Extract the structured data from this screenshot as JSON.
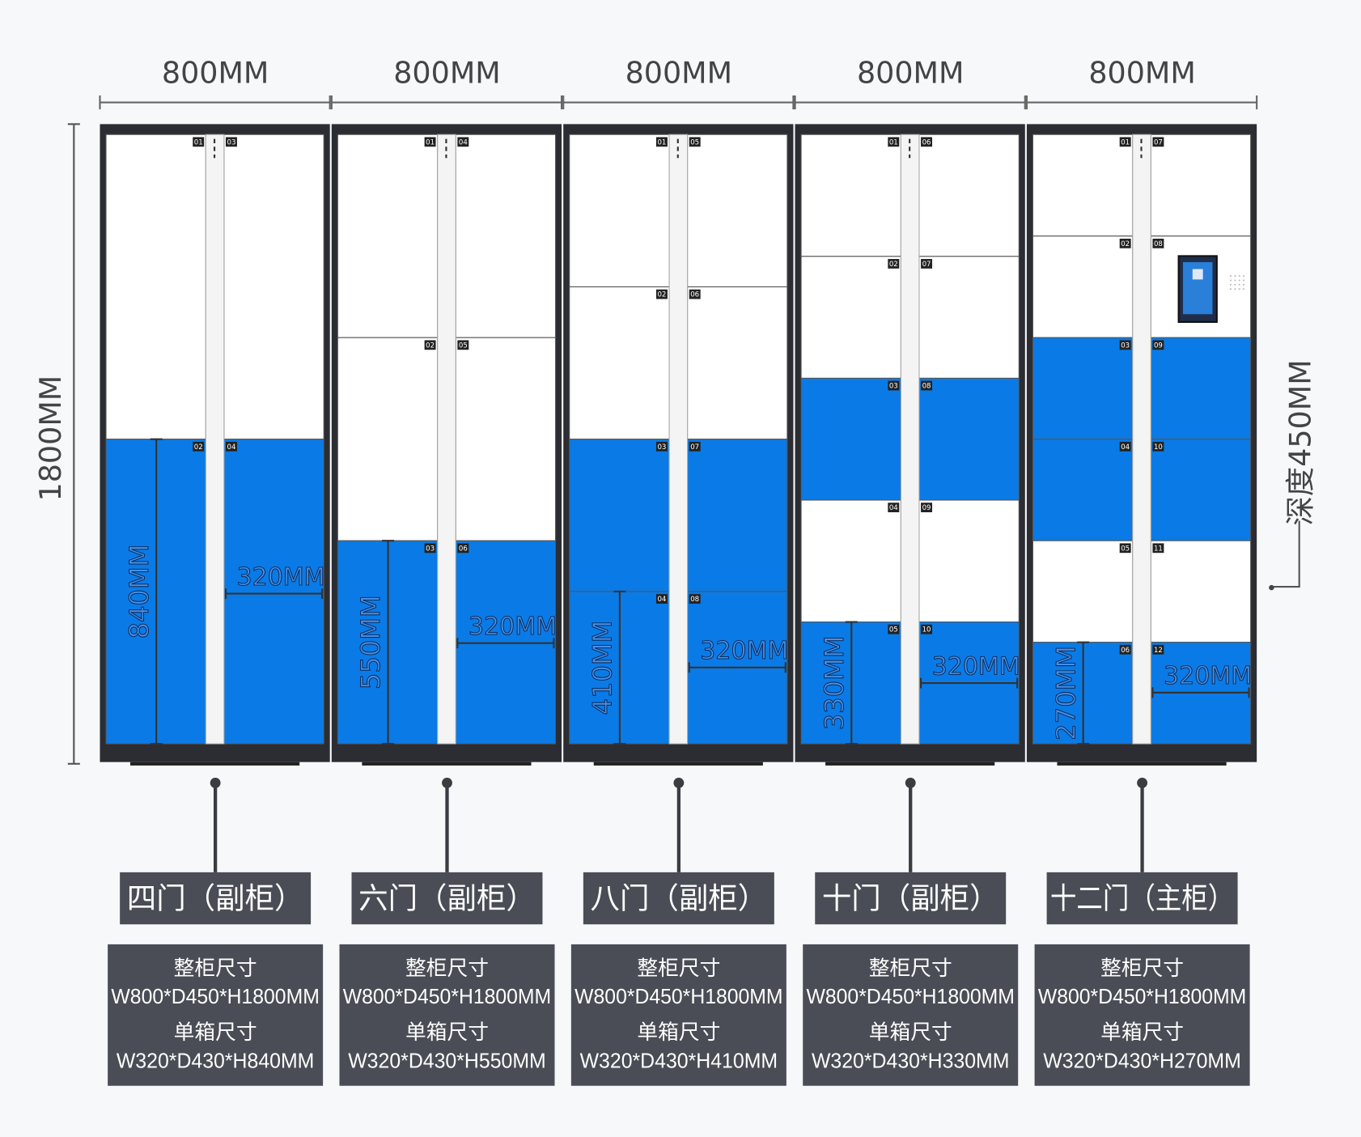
{
  "height_label": "1800MM",
  "depth_label": "深度450MM",
  "cabinets": [
    {
      "width": "800MM",
      "name": "四门（副柜）",
      "whole_label": "整柜尺寸",
      "whole_size": "W800*D450*H1800MM",
      "unit_label": "单箱尺寸",
      "unit_size": "W320*D430*H840MM",
      "box_height": "840MM",
      "box_width": "320MM",
      "left_doors": [
        "01",
        "02"
      ],
      "right_doors": [
        "03",
        "04"
      ]
    },
    {
      "width": "800MM",
      "name": "六门（副柜）",
      "whole_label": "整柜尺寸",
      "whole_size": "W800*D450*H1800MM",
      "unit_label": "单箱尺寸",
      "unit_size": "W320*D430*H550MM",
      "box_height": "550MM",
      "box_width": "320MM",
      "left_doors": [
        "01",
        "02",
        "03"
      ],
      "right_doors": [
        "04",
        "05",
        "06"
      ]
    },
    {
      "width": "800MM",
      "name": "八门（副柜）",
      "whole_label": "整柜尺寸",
      "whole_size": "W800*D450*H1800MM",
      "unit_label": "单箱尺寸",
      "unit_size": "W320*D430*H410MM",
      "box_height": "410MM",
      "box_width": "320MM",
      "left_doors": [
        "01",
        "02",
        "03",
        "04"
      ],
      "right_doors": [
        "05",
        "06",
        "07",
        "08"
      ]
    },
    {
      "width": "800MM",
      "name": "十门（副柜）",
      "whole_label": "整柜尺寸",
      "whole_size": "W800*D450*H1800MM",
      "unit_label": "单箱尺寸",
      "unit_size": "W320*D430*H330MM",
      "box_height": "330MM",
      "box_width": "320MM",
      "left_doors": [
        "01",
        "02",
        "03",
        "04",
        "05"
      ],
      "right_doors": [
        "06",
        "07",
        "08",
        "09",
        "10"
      ]
    },
    {
      "width": "800MM",
      "name": "十二门（主柜）",
      "whole_label": "整柜尺寸",
      "whole_size": "W800*D450*H1800MM",
      "unit_label": "单箱尺寸",
      "unit_size": "W320*D430*H270MM",
      "box_height": "270MM",
      "box_width": "320MM",
      "left_doors": [
        "01",
        "02",
        "03",
        "04",
        "05",
        "06"
      ],
      "right_doors": [
        "07",
        "08",
        "09",
        "10",
        "11",
        "12"
      ]
    }
  ]
}
